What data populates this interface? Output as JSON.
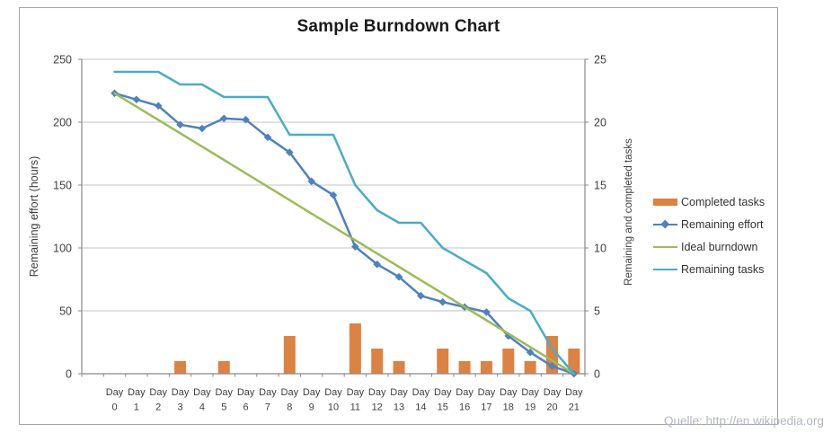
{
  "frame": {
    "source_text": "Quelle: http://en.wikipedia.org"
  },
  "chart_data": {
    "type": "combo-bar-line",
    "title": "Sample Burndown Chart",
    "categories": [
      "Day 0",
      "Day 1",
      "Day 2",
      "Day 3",
      "Day 4",
      "Day 5",
      "Day 6",
      "Day 7",
      "Day 8",
      "Day 9",
      "Day 10",
      "Day 11",
      "Day 12",
      "Day 13",
      "Day 14",
      "Day 15",
      "Day 16",
      "Day 17",
      "Day 18",
      "Day 19",
      "Day 20",
      "Day 21"
    ],
    "left_axis": {
      "label": "Remaining effort (hours)",
      "min": 0,
      "max": 250,
      "ticks": [
        "0",
        "50",
        "100",
        "150",
        "200",
        "250"
      ],
      "tick_values": [
        0,
        50,
        100,
        150,
        200,
        250
      ]
    },
    "right_axis": {
      "label": "Remaining and completed tasks",
      "min": 0,
      "max": 25,
      "ticks": [
        "0",
        "5",
        "10",
        "15",
        "20",
        "25"
      ],
      "tick_values": [
        0,
        5,
        10,
        15,
        20,
        25
      ]
    },
    "series": [
      {
        "name": "Completed tasks",
        "type": "bar",
        "axis": "right",
        "color": "#dc8243",
        "values": [
          0,
          0,
          0,
          1,
          0,
          1,
          0,
          0,
          3,
          0,
          0,
          4,
          2,
          1,
          0,
          2,
          1,
          1,
          2,
          1,
          3,
          2
        ]
      },
      {
        "name": "Remaining effort",
        "type": "line",
        "axis": "left",
        "marker": "diamond",
        "color": "#4f81bd",
        "values": [
          223,
          218,
          213,
          198,
          195,
          203,
          202,
          188,
          176,
          153,
          142,
          101,
          87,
          77,
          62,
          57,
          53,
          49,
          30,
          17,
          6,
          0
        ]
      },
      {
        "name": "Ideal burndown",
        "type": "line",
        "axis": "left",
        "color": "#9bbb59",
        "values": [
          223,
          212.4,
          201.8,
          191.2,
          180.6,
          170,
          159.3,
          148.7,
          138.1,
          127.4,
          116.8,
          106.2,
          95.6,
          85,
          74.3,
          63.7,
          53.1,
          42.5,
          31.9,
          21.2,
          10.6,
          0
        ]
      },
      {
        "name": "Remaining tasks",
        "type": "line",
        "axis": "right",
        "color": "#4bacc6",
        "values": [
          24,
          24,
          24,
          23,
          23,
          22,
          22,
          22,
          19,
          19,
          19,
          15,
          13,
          12,
          12,
          10,
          9,
          8,
          6,
          5,
          2,
          0
        ]
      }
    ],
    "grid": true,
    "legend_position": "right",
    "colors": {
      "gridline": "#c6c6c6",
      "axis_line": "#898989",
      "tick_text": "#3f3f3f",
      "title_text": "#1a1a1a",
      "source_text": "#b3b6c6"
    }
  }
}
